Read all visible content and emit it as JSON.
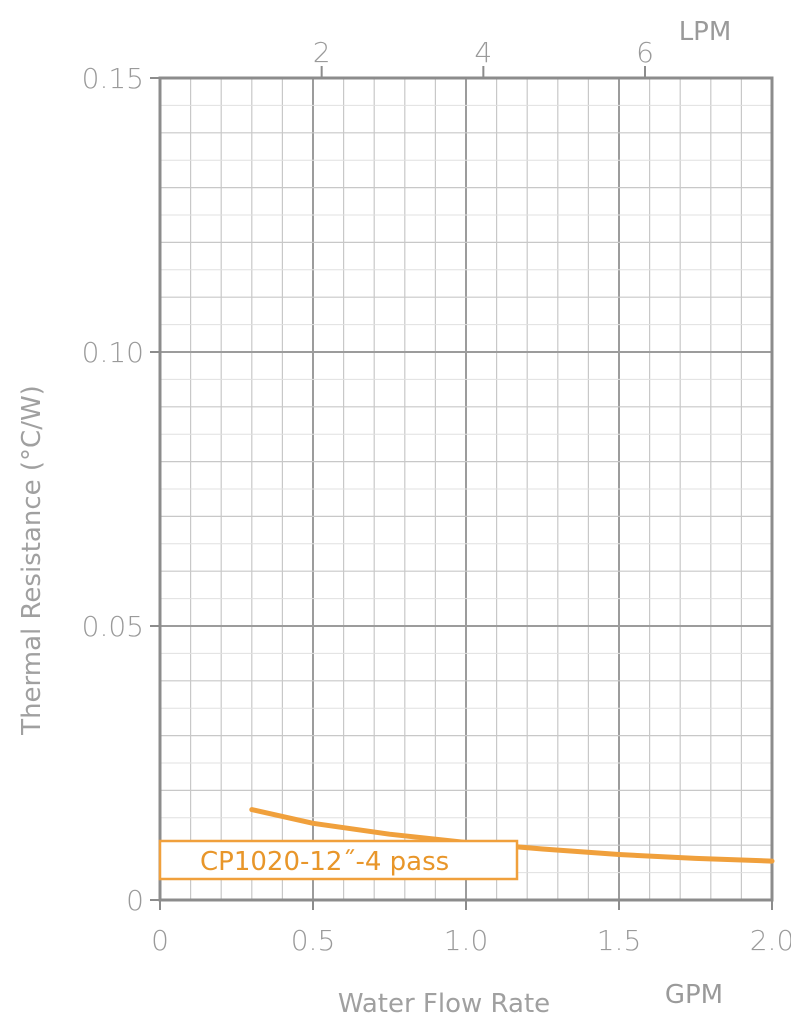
{
  "chart_data": {
    "type": "line",
    "xlabel": "Water Flow Rate",
    "ylabel": "Thermal Resistance (°C/W)",
    "x_unit": "GPM",
    "x2_unit": "LPM",
    "xlim": [
      0,
      2.0
    ],
    "ylim": [
      0,
      0.15
    ],
    "x_ticks": [
      "0",
      "0.5",
      "1.0",
      "1.5",
      "2.0"
    ],
    "y_ticks": [
      "0",
      "0.05",
      "0.10",
      "0.15"
    ],
    "x2_ticks": [
      "2",
      "4",
      "6"
    ],
    "x2_tick_values_gpm": [
      0.5283,
      1.0567,
      1.585
    ],
    "grid": true,
    "legend_position": "bottom-left",
    "series": [
      {
        "name": "CP1020-12˝-4 pass",
        "color": "#f0a03c",
        "x": [
          0.3,
          0.5,
          0.75,
          1.0,
          1.25,
          1.5,
          1.75,
          2.0
        ],
        "y": [
          0.0165,
          0.014,
          0.012,
          0.0105,
          0.0093,
          0.0083,
          0.0076,
          0.0071
        ]
      }
    ]
  }
}
